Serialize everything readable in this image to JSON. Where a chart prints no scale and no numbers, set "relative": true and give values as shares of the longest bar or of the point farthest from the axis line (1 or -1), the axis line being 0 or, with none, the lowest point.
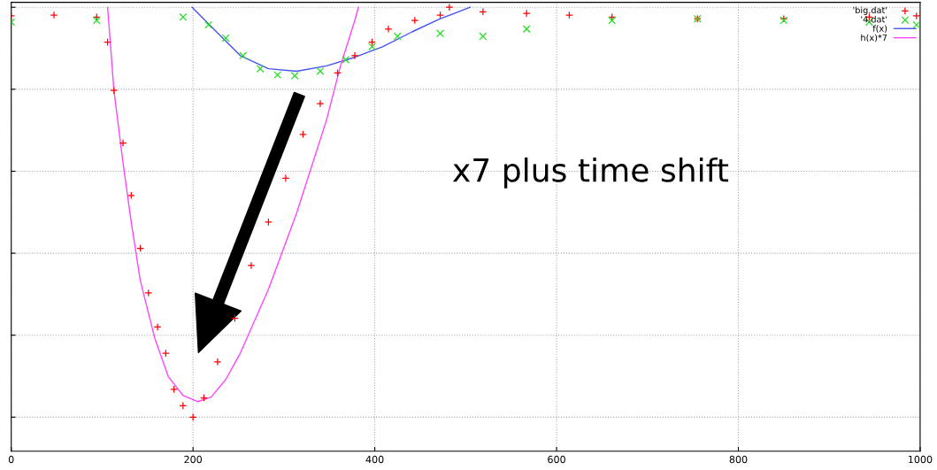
{
  "chart_data": {
    "type": "scatter",
    "relative": true,
    "xlim": [
      0,
      1000
    ],
    "xticks": [
      0,
      200,
      400,
      600,
      800,
      {
        "value": 1000,
        "label": "1000"
      }
    ],
    "grid": true,
    "legend": "top right",
    "annotations": [
      "x7 plus time shift"
    ],
    "series": [
      {
        "name": "'big.dat'",
        "marker": "cross",
        "color": "#ff0000",
        "x": [
          0,
          47,
          94,
          106,
          113,
          123,
          132,
          142,
          151,
          161,
          170,
          179,
          189,
          200,
          212,
          227,
          246,
          264,
          283,
          302,
          321,
          340,
          359,
          378,
          397,
          415,
          444,
          472,
          482,
          519,
          567,
          614,
          661,
          755,
          850,
          944,
          996
        ],
        "values": [
          0.979,
          0.981,
          0.976,
          0.915,
          0.797,
          0.669,
          0.541,
          0.412,
          0.303,
          0.22,
          0.156,
          0.068,
          0.028,
          0.0,
          0.047,
          0.135,
          0.241,
          0.37,
          0.476,
          0.583,
          0.69,
          0.765,
          0.84,
          0.882,
          0.915,
          0.947,
          0.968,
          0.981,
          1.0,
          0.989,
          0.985,
          0.981,
          0.976,
          0.972,
          0.972,
          0.976,
          0.979
        ]
      },
      {
        "name": "'4.dat'",
        "marker": "x",
        "color": "#22dd22",
        "x": [
          0,
          94,
          189,
          217,
          236,
          255,
          274,
          293,
          312,
          340,
          368,
          397,
          425,
          472,
          519,
          567,
          661,
          755,
          850,
          944,
          996
        ],
        "values": [
          0.964,
          0.968,
          0.976,
          0.957,
          0.925,
          0.882,
          0.85,
          0.835,
          0.833,
          0.844,
          0.872,
          0.904,
          0.929,
          0.936,
          0.929,
          0.947,
          0.968,
          0.972,
          0.968,
          0.964,
          0.957
        ]
      },
      {
        "name": "f(x)",
        "type": "line",
        "marker": "none",
        "color": "#4455ee",
        "x": [
          199,
          220,
          252,
          283,
          314,
          347,
          378,
          409,
          441,
          472,
          505
        ],
        "values": [
          1.0,
          0.953,
          0.882,
          0.85,
          0.844,
          0.857,
          0.878,
          0.904,
          0.94,
          0.972,
          1.0
        ]
      },
      {
        "name": "h(x)*7",
        "type": "line",
        "marker": "none",
        "color": "#ff44ff",
        "x": [
          106,
          113,
          123,
          132,
          142,
          158,
          173,
          189,
          205,
          220,
          236,
          252,
          283,
          314,
          347,
          362,
          378,
          382
        ],
        "values": [
          1.0,
          0.797,
          0.62,
          0.476,
          0.333,
          0.192,
          0.098,
          0.053,
          0.038,
          0.049,
          0.092,
          0.156,
          0.312,
          0.498,
          0.726,
          0.855,
          0.968,
          1.0
        ]
      }
    ]
  }
}
